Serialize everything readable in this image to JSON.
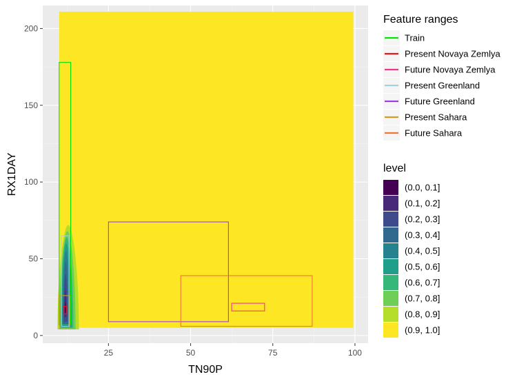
{
  "chart_data": {
    "type": "heatmap",
    "xlabel": "TN90P",
    "ylabel": "RX1DAY",
    "xlim": [
      5,
      104
    ],
    "ylim": [
      -5,
      215
    ],
    "x_ticks": [
      25,
      50,
      75,
      100
    ],
    "y_ticks": [
      0,
      50,
      100,
      150,
      200
    ],
    "x_tick_labels": [
      "25",
      "50",
      "75",
      "100"
    ],
    "y_tick_labels": [
      "0",
      "50",
      "100",
      "150",
      "200"
    ],
    "grid": true,
    "legend_position": "right",
    "background_level": {
      "label": "(0.9, 1.0]",
      "x": [
        10,
        99.5
      ],
      "y": [
        5,
        211
      ]
    },
    "density_contours": [
      {
        "level": "(0.8, 0.9]",
        "x": [
          9.5,
          16
        ],
        "y": [
          4,
          72
        ]
      },
      {
        "level": "(0.7, 0.8]",
        "x": [
          10,
          15
        ],
        "y": [
          4,
          68
        ]
      },
      {
        "level": "(0.6, 0.7]",
        "x": [
          10.3,
          14.3
        ],
        "y": [
          5,
          64
        ]
      },
      {
        "level": "(0.5, 0.6]",
        "x": [
          10.6,
          13.8
        ],
        "y": [
          5,
          60
        ]
      },
      {
        "level": "(0.4, 0.5]",
        "x": [
          10.9,
          13.3
        ],
        "y": [
          6,
          55
        ]
      },
      {
        "level": "(0.3, 0.4]",
        "x": [
          11.2,
          12.8
        ],
        "y": [
          7,
          48
        ]
      },
      {
        "level": "(0.2, 0.3]",
        "x": [
          11.4,
          12.5
        ],
        "y": [
          9,
          40
        ]
      },
      {
        "level": "(0.1, 0.2]",
        "x": [
          11.6,
          12.2
        ],
        "y": [
          12,
          30
        ]
      },
      {
        "level": "(0.0, 0.1]",
        "x": [
          11.75,
          12.05
        ],
        "y": [
          15,
          22
        ]
      }
    ],
    "feature_ranges": [
      {
        "name": "Train",
        "xmin": 10,
        "xmax": 13.5,
        "ymin": 7,
        "ymax": 178
      },
      {
        "name": "Present Novaya Zemlya",
        "xmin": 11.3,
        "xmax": 12.3,
        "ymin": 14,
        "ymax": 19
      },
      {
        "name": "Future Novaya Zemlya",
        "xmin": 62.5,
        "xmax": 72.5,
        "ymin": 16,
        "ymax": 21
      },
      {
        "name": "Present Greenland",
        "xmin": 10.7,
        "xmax": 13.0,
        "ymin": 6,
        "ymax": 65
      },
      {
        "name": "Future Greenland",
        "xmin": 25,
        "xmax": 61.5,
        "ymin": 9,
        "ymax": 74
      },
      {
        "name": "Present Sahara",
        "xmin": 10.2,
        "xmax": 13.2,
        "ymin": 5,
        "ymax": 26
      },
      {
        "name": "Future Sahara",
        "xmin": 47,
        "xmax": 87,
        "ymin": 6,
        "ymax": 39
      }
    ]
  },
  "legend_feature": {
    "title": "Feature ranges",
    "items": [
      {
        "label": "Train",
        "color": "#00e500"
      },
      {
        "label": "Present Novaya Zemlya",
        "color": "#e8141c"
      },
      {
        "label": "Future Novaya Zemlya",
        "color": "#f0368f"
      },
      {
        "label": "Present Greenland",
        "color": "#a6cee3"
      },
      {
        "label": "Future Greenland",
        "color": "#9b3fe0"
      },
      {
        "label": "Present Sahara",
        "color": "#d99a1e"
      },
      {
        "label": "Future Sahara",
        "color": "#ee7633"
      }
    ]
  },
  "legend_level": {
    "title": "level",
    "items": [
      {
        "label": "(0.0, 0.1]",
        "color": "#440154"
      },
      {
        "label": "(0.1, 0.2]",
        "color": "#482878"
      },
      {
        "label": "(0.2, 0.3]",
        "color": "#3e4a89"
      },
      {
        "label": "(0.3, 0.4]",
        "color": "#31688e"
      },
      {
        "label": "(0.4, 0.5]",
        "color": "#26828e"
      },
      {
        "label": "(0.5, 0.6]",
        "color": "#1f9e89"
      },
      {
        "label": "(0.6, 0.7]",
        "color": "#35b779"
      },
      {
        "label": "(0.7, 0.8]",
        "color": "#6ece58"
      },
      {
        "label": "(0.8, 0.9]",
        "color": "#b5de2b"
      },
      {
        "label": "(0.9, 1.0]",
        "color": "#fde725"
      }
    ]
  },
  "colors": {
    "panel_background": "#ebebeb",
    "grid_major": "#ffffff",
    "grid_minor": "#f5f5f5"
  }
}
